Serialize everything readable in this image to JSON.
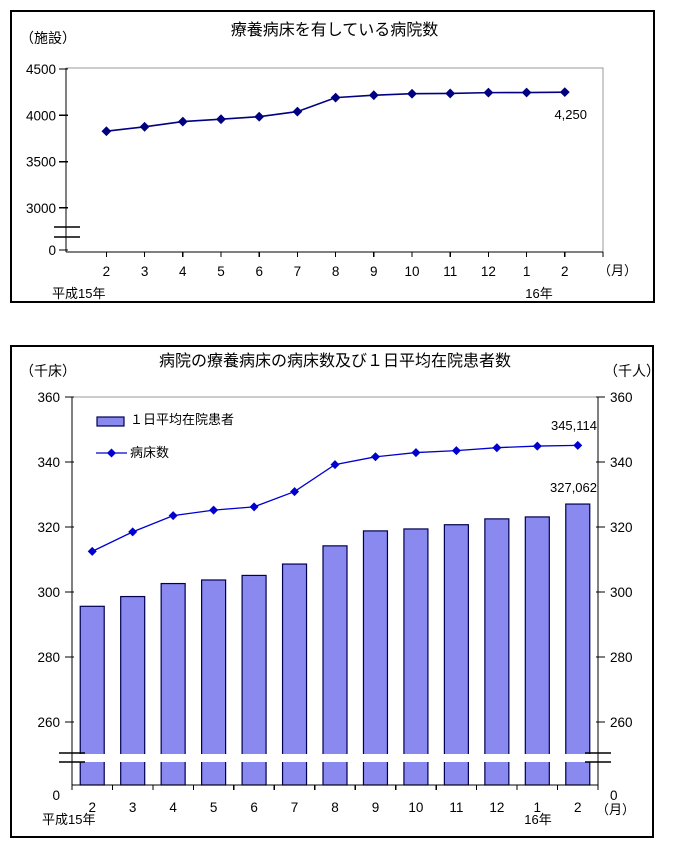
{
  "page": {
    "background": "#ffffff"
  },
  "chart_data": [
    {
      "type": "line",
      "title": "療養病床を有している病院数",
      "y_unit": "（施設）",
      "x_unit": "（月）",
      "x_era_labels": [
        "平成15年",
        "16年"
      ],
      "categories": [
        "2",
        "3",
        "4",
        "5",
        "6",
        "7",
        "8",
        "9",
        "10",
        "11",
        "12",
        "1",
        "2"
      ],
      "series": [
        {
          "name": "病院数",
          "marker": "diamond",
          "color": "#000080",
          "values": [
            3828,
            3876,
            3932,
            3958,
            3985,
            4040,
            4191,
            4217,
            4233,
            4236,
            4245,
            4246,
            4250
          ]
        }
      ],
      "y_ticks": [
        0,
        3000,
        3500,
        4000,
        4500
      ],
      "ylim_display": [
        3000,
        4500
      ],
      "axis_break": true,
      "grid": false,
      "annotation": "4,250",
      "annotation_point": {
        "category_index": 12,
        "value": 4250
      }
    },
    {
      "type": "bar+line",
      "title": "病院の療養病床の病床数及び１日平均在院患者数",
      "y_left_unit": "（千床）",
      "y_right_unit": "（千人）",
      "x_unit": "（月）",
      "x_era_labels": [
        "平成15年",
        "16年"
      ],
      "categories": [
        "2",
        "3",
        "4",
        "5",
        "6",
        "7",
        "8",
        "9",
        "10",
        "11",
        "12",
        "1",
        "2"
      ],
      "series": [
        {
          "name": "１日平均在院患者",
          "type": "bar",
          "fill": "#8989F0",
          "border": "#000050",
          "values": [
            295.6,
            298.6,
            302.6,
            303.7,
            305.1,
            308.6,
            314.2,
            318.8,
            319.4,
            320.7,
            322.5,
            323.1,
            327.062
          ]
        },
        {
          "name": "病床数",
          "type": "line",
          "marker": "diamond",
          "color": "#0000D0",
          "values": [
            312.5,
            318.5,
            323.5,
            325.2,
            326.2,
            330.9,
            339.2,
            341.6,
            342.9,
            343.5,
            344.4,
            344.9,
            345.114
          ]
        }
      ],
      "y_ticks": [
        0,
        260,
        280,
        300,
        320,
        340,
        360
      ],
      "ylim_display": [
        260,
        360
      ],
      "axis_break": true,
      "grid": false,
      "legend": [
        "１日平均在院患者",
        "病床数"
      ],
      "legend_position": "top-left-inside",
      "annotations": [
        "345,114",
        "327,062"
      ]
    }
  ]
}
